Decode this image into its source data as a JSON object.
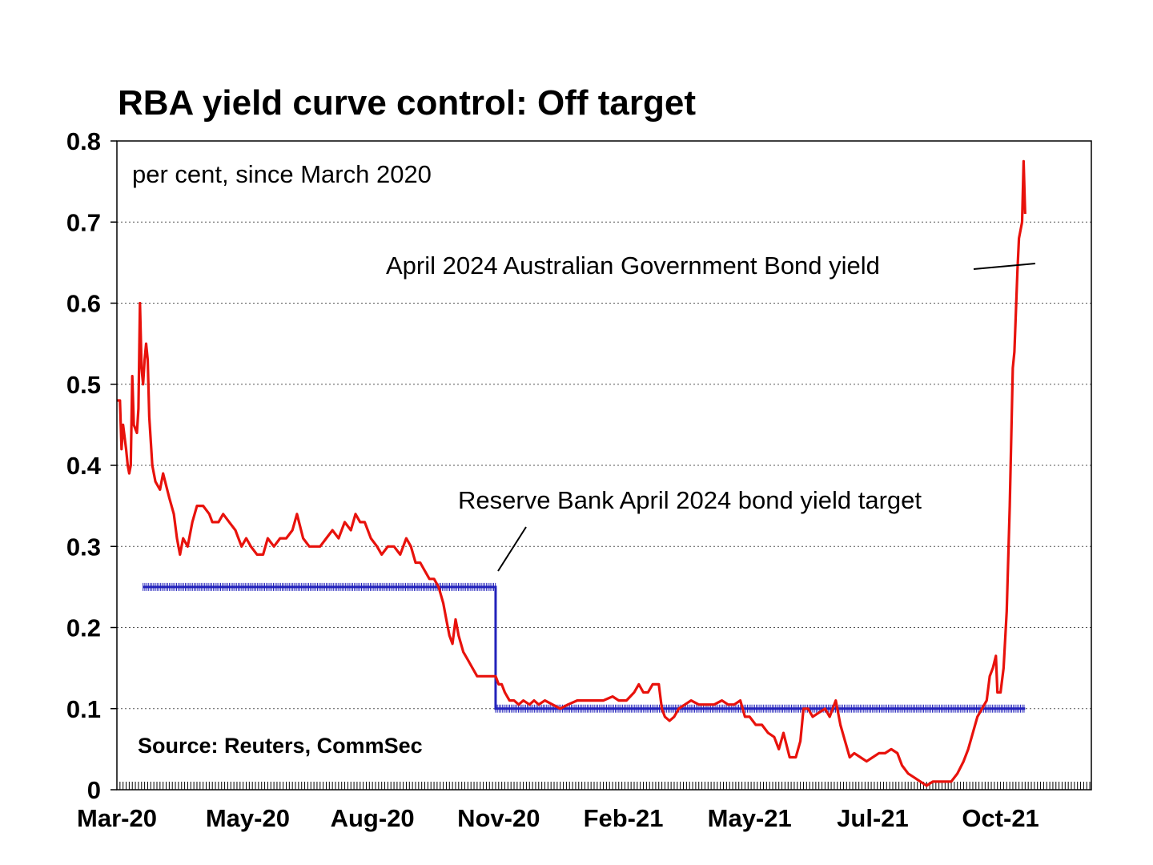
{
  "chart_data": {
    "type": "line",
    "title": "RBA yield curve control: Off target",
    "subtitle": "per cent, since March 2020",
    "source": "Source: Reuters, CommSec",
    "y_ticks": [
      "0",
      "0.1",
      "0.2",
      "0.3",
      "0.4",
      "0.5",
      "0.6",
      "0.7",
      "0.8"
    ],
    "ylim": [
      0,
      0.8
    ],
    "x_ticks": [
      {
        "label": "Mar-20",
        "date": "2020-03-02"
      },
      {
        "label": "May-20",
        "date": "2020-05-26"
      },
      {
        "label": "Aug-20",
        "date": "2020-08-15"
      },
      {
        "label": "Nov-20",
        "date": "2020-11-05"
      },
      {
        "label": "Feb-21",
        "date": "2021-01-25"
      },
      {
        "label": "May-21",
        "date": "2021-04-17"
      },
      {
        "label": "Jul-21",
        "date": "2021-07-06"
      },
      {
        "label": "Oct-21",
        "date": "2021-09-27"
      }
    ],
    "xlim": [
      "2020-03-02",
      "2021-11-25"
    ],
    "grid": "horizontal-dotted",
    "annotations": [
      {
        "text": "April 2024 Australian Government Bond yield",
        "series": "bond"
      },
      {
        "text": "Reserve Bank April 2024 bond yield target",
        "series": "target"
      }
    ],
    "series": [
      {
        "id": "bond",
        "color": "#e8120c",
        "points": [
          [
            "2020-03-02",
            0.48
          ],
          [
            "2020-03-04",
            0.48
          ],
          [
            "2020-03-05",
            0.42
          ],
          [
            "2020-03-06",
            0.45
          ],
          [
            "2020-03-08",
            0.42
          ],
          [
            "2020-03-09",
            0.4
          ],
          [
            "2020-03-10",
            0.39
          ],
          [
            "2020-03-11",
            0.4
          ],
          [
            "2020-03-12",
            0.51
          ],
          [
            "2020-03-13",
            0.45
          ],
          [
            "2020-03-15",
            0.44
          ],
          [
            "2020-03-16",
            0.47
          ],
          [
            "2020-03-17",
            0.6
          ],
          [
            "2020-03-18",
            0.52
          ],
          [
            "2020-03-19",
            0.5
          ],
          [
            "2020-03-20",
            0.53
          ],
          [
            "2020-03-21",
            0.55
          ],
          [
            "2020-03-22",
            0.53
          ],
          [
            "2020-03-23",
            0.46
          ],
          [
            "2020-03-25",
            0.4
          ],
          [
            "2020-03-27",
            0.38
          ],
          [
            "2020-03-30",
            0.37
          ],
          [
            "2020-04-01",
            0.39
          ],
          [
            "2020-04-05",
            0.36
          ],
          [
            "2020-04-08",
            0.34
          ],
          [
            "2020-04-10",
            0.31
          ],
          [
            "2020-04-12",
            0.29
          ],
          [
            "2020-04-14",
            0.31
          ],
          [
            "2020-04-17",
            0.3
          ],
          [
            "2020-04-20",
            0.33
          ],
          [
            "2020-04-23",
            0.35
          ],
          [
            "2020-04-27",
            0.35
          ],
          [
            "2020-05-01",
            0.34
          ],
          [
            "2020-05-03",
            0.33
          ],
          [
            "2020-05-07",
            0.33
          ],
          [
            "2020-05-10",
            0.34
          ],
          [
            "2020-05-14",
            0.33
          ],
          [
            "2020-05-18",
            0.32
          ],
          [
            "2020-05-22",
            0.3
          ],
          [
            "2020-05-25",
            0.31
          ],
          [
            "2020-05-28",
            0.3
          ],
          [
            "2020-06-01",
            0.29
          ],
          [
            "2020-06-05",
            0.29
          ],
          [
            "2020-06-08",
            0.31
          ],
          [
            "2020-06-12",
            0.3
          ],
          [
            "2020-06-16",
            0.31
          ],
          [
            "2020-06-20",
            0.31
          ],
          [
            "2020-06-24",
            0.32
          ],
          [
            "2020-06-27",
            0.34
          ],
          [
            "2020-07-01",
            0.31
          ],
          [
            "2020-07-05",
            0.3
          ],
          [
            "2020-07-08",
            0.3
          ],
          [
            "2020-07-12",
            0.3
          ],
          [
            "2020-07-16",
            0.31
          ],
          [
            "2020-07-20",
            0.32
          ],
          [
            "2020-07-24",
            0.31
          ],
          [
            "2020-07-28",
            0.33
          ],
          [
            "2020-08-01",
            0.32
          ],
          [
            "2020-08-04",
            0.34
          ],
          [
            "2020-08-07",
            0.33
          ],
          [
            "2020-08-10",
            0.33
          ],
          [
            "2020-08-14",
            0.31
          ],
          [
            "2020-08-18",
            0.3
          ],
          [
            "2020-08-21",
            0.29
          ],
          [
            "2020-08-25",
            0.3
          ],
          [
            "2020-08-29",
            0.3
          ],
          [
            "2020-09-02",
            0.29
          ],
          [
            "2020-09-06",
            0.31
          ],
          [
            "2020-09-09",
            0.3
          ],
          [
            "2020-09-12",
            0.28
          ],
          [
            "2020-09-15",
            0.28
          ],
          [
            "2020-09-18",
            0.27
          ],
          [
            "2020-09-21",
            0.26
          ],
          [
            "2020-09-24",
            0.26
          ],
          [
            "2020-09-27",
            0.25
          ],
          [
            "2020-09-30",
            0.23
          ],
          [
            "2020-10-02",
            0.21
          ],
          [
            "2020-10-04",
            0.19
          ],
          [
            "2020-10-06",
            0.18
          ],
          [
            "2020-10-08",
            0.21
          ],
          [
            "2020-10-10",
            0.19
          ],
          [
            "2020-10-13",
            0.17
          ],
          [
            "2020-10-16",
            0.16
          ],
          [
            "2020-10-19",
            0.15
          ],
          [
            "2020-10-22",
            0.14
          ],
          [
            "2020-10-25",
            0.14
          ],
          [
            "2020-10-28",
            0.14
          ],
          [
            "2020-10-31",
            0.14
          ],
          [
            "2020-11-03",
            0.14
          ],
          [
            "2020-11-05",
            0.13
          ],
          [
            "2020-11-07",
            0.13
          ],
          [
            "2020-11-09",
            0.12
          ],
          [
            "2020-11-12",
            0.11
          ],
          [
            "2020-11-15",
            0.11
          ],
          [
            "2020-11-18",
            0.105
          ],
          [
            "2020-11-21",
            0.11
          ],
          [
            "2020-11-25",
            0.105
          ],
          [
            "2020-11-28",
            0.11
          ],
          [
            "2020-12-01",
            0.105
          ],
          [
            "2020-12-05",
            0.11
          ],
          [
            "2020-12-10",
            0.105
          ],
          [
            "2020-12-15",
            0.1
          ],
          [
            "2020-12-20",
            0.105
          ],
          [
            "2020-12-26",
            0.11
          ],
          [
            "2021-01-01",
            0.11
          ],
          [
            "2021-01-06",
            0.11
          ],
          [
            "2021-01-12",
            0.11
          ],
          [
            "2021-01-18",
            0.115
          ],
          [
            "2021-01-22",
            0.11
          ],
          [
            "2021-01-27",
            0.11
          ],
          [
            "2021-02-01",
            0.12
          ],
          [
            "2021-02-04",
            0.13
          ],
          [
            "2021-02-07",
            0.12
          ],
          [
            "2021-02-10",
            0.12
          ],
          [
            "2021-02-13",
            0.13
          ],
          [
            "2021-02-17",
            0.13
          ],
          [
            "2021-02-19",
            0.1
          ],
          [
            "2021-02-21",
            0.09
          ],
          [
            "2021-02-24",
            0.085
          ],
          [
            "2021-02-27",
            0.09
          ],
          [
            "2021-03-02",
            0.1
          ],
          [
            "2021-03-06",
            0.105
          ],
          [
            "2021-03-10",
            0.11
          ],
          [
            "2021-03-15",
            0.105
          ],
          [
            "2021-03-20",
            0.105
          ],
          [
            "2021-03-25",
            0.105
          ],
          [
            "2021-03-30",
            0.11
          ],
          [
            "2021-04-03",
            0.105
          ],
          [
            "2021-04-07",
            0.105
          ],
          [
            "2021-04-11",
            0.11
          ],
          [
            "2021-04-14",
            0.09
          ],
          [
            "2021-04-17",
            0.09
          ],
          [
            "2021-04-21",
            0.08
          ],
          [
            "2021-04-25",
            0.08
          ],
          [
            "2021-04-29",
            0.07
          ],
          [
            "2021-05-03",
            0.065
          ],
          [
            "2021-05-06",
            0.05
          ],
          [
            "2021-05-09",
            0.07
          ],
          [
            "2021-05-13",
            0.04
          ],
          [
            "2021-05-17",
            0.04
          ],
          [
            "2021-05-20",
            0.06
          ],
          [
            "2021-05-22",
            0.1
          ],
          [
            "2021-05-25",
            0.1
          ],
          [
            "2021-05-28",
            0.09
          ],
          [
            "2021-06-01",
            0.095
          ],
          [
            "2021-06-05",
            0.1
          ],
          [
            "2021-06-08",
            0.09
          ],
          [
            "2021-06-12",
            0.11
          ],
          [
            "2021-06-15",
            0.08
          ],
          [
            "2021-06-18",
            0.06
          ],
          [
            "2021-06-21",
            0.04
          ],
          [
            "2021-06-24",
            0.045
          ],
          [
            "2021-06-28",
            0.04
          ],
          [
            "2021-07-02",
            0.035
          ],
          [
            "2021-07-06",
            0.04
          ],
          [
            "2021-07-10",
            0.045
          ],
          [
            "2021-07-14",
            0.045
          ],
          [
            "2021-07-18",
            0.05
          ],
          [
            "2021-07-22",
            0.045
          ],
          [
            "2021-07-25",
            0.03
          ],
          [
            "2021-07-29",
            0.02
          ],
          [
            "2021-08-02",
            0.015
          ],
          [
            "2021-08-06",
            0.01
          ],
          [
            "2021-08-10",
            0.005
          ],
          [
            "2021-08-14",
            0.01
          ],
          [
            "2021-08-18",
            0.01
          ],
          [
            "2021-08-22",
            0.01
          ],
          [
            "2021-08-26",
            0.01
          ],
          [
            "2021-08-30",
            0.02
          ],
          [
            "2021-09-03",
            0.035
          ],
          [
            "2021-09-06",
            0.05
          ],
          [
            "2021-09-09",
            0.07
          ],
          [
            "2021-09-12",
            0.09
          ],
          [
            "2021-09-15",
            0.1
          ],
          [
            "2021-09-18",
            0.11
          ],
          [
            "2021-09-20",
            0.14
          ],
          [
            "2021-09-22",
            0.15
          ],
          [
            "2021-09-24",
            0.165
          ],
          [
            "2021-09-25",
            0.12
          ],
          [
            "2021-09-27",
            0.12
          ],
          [
            "2021-09-29",
            0.15
          ],
          [
            "2021-10-01",
            0.22
          ],
          [
            "2021-10-03",
            0.35
          ],
          [
            "2021-10-05",
            0.52
          ],
          [
            "2021-10-06",
            0.54
          ],
          [
            "2021-10-08",
            0.64
          ],
          [
            "2021-10-09",
            0.68
          ],
          [
            "2021-10-11",
            0.7
          ],
          [
            "2021-10-12",
            0.775
          ],
          [
            "2021-10-13",
            0.71
          ]
        ]
      },
      {
        "id": "target",
        "color": "#2222bb",
        "points": [
          [
            "2020-03-19",
            0.25
          ],
          [
            "2020-11-03",
            0.25
          ],
          [
            "2020-11-03",
            0.1
          ],
          [
            "2021-10-13",
            0.1
          ]
        ]
      }
    ]
  }
}
